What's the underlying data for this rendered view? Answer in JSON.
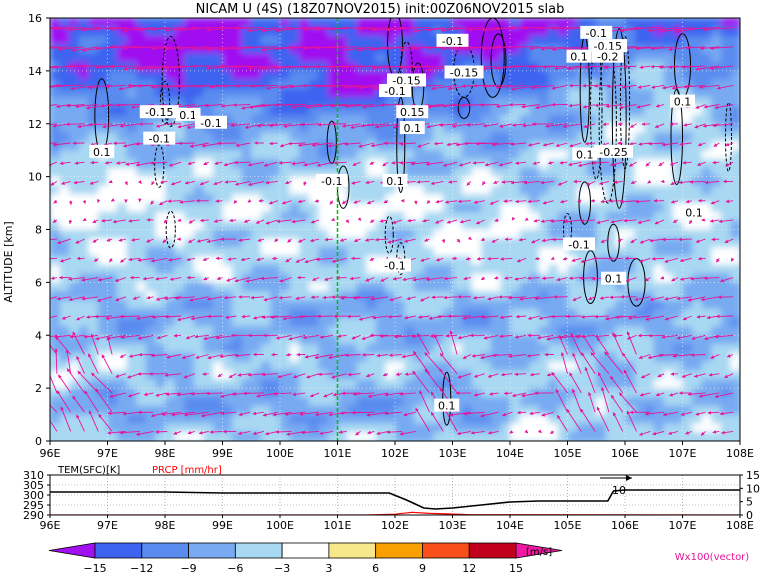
{
  "chart_data": [
    {
      "type": "heatmap",
      "title": "NICAM U (4S) (18Z07NOV2015) init:00Z06NOV2015 slab",
      "xlabel": "",
      "ylabel": "ALTITUDE [km]",
      "x_ticks": [
        "96E",
        "97E",
        "98E",
        "99E",
        "100E",
        "101E",
        "102E",
        "103E",
        "104E",
        "105E",
        "106E",
        "107E",
        "108E"
      ],
      "x_range": [
        96,
        108
      ],
      "y_ticks": [
        "0",
        "2",
        "4",
        "6",
        "8",
        "10",
        "12",
        "14",
        "16"
      ],
      "y_range": [
        0,
        16
      ],
      "reference_line_lon": 101,
      "color_levels": [
        "-15",
        "-12",
        "-9",
        "-6",
        "-3",
        "3",
        "6",
        "9",
        "12",
        "15"
      ],
      "color_palette": [
        "#a010f0",
        "#3c64f0",
        "#5a8cf0",
        "#78aaf2",
        "#a8d8f2",
        "#ffffff",
        "#f8e88c",
        "#f8a000",
        "#f85018",
        "#c0001c",
        "#f018a0"
      ],
      "colorbar_unit": "[m/s]",
      "vector_label": "Wx100(vector)",
      "vector_color": "#e6149a",
      "contour_labels": [
        {
          "text": "-0.1",
          "lon": 103.0,
          "alt": 15.1
        },
        {
          "text": "-0.1",
          "lon": 105.5,
          "alt": 15.4
        },
        {
          "text": "-0.15",
          "lon": 105.7,
          "alt": 14.9
        },
        {
          "text": "-0.2",
          "lon": 105.7,
          "alt": 14.5
        },
        {
          "text": "0.1",
          "lon": 105.2,
          "alt": 14.5
        },
        {
          "text": "-0.15",
          "lon": 102.2,
          "alt": 13.6
        },
        {
          "text": "-0.1",
          "lon": 102.0,
          "alt": 13.2
        },
        {
          "text": "0.15",
          "lon": 102.3,
          "alt": 12.4
        },
        {
          "text": "0.1",
          "lon": 102.3,
          "alt": 11.8
        },
        {
          "text": "-0.15",
          "lon": 103.2,
          "alt": 13.9
        },
        {
          "text": "-0.15",
          "lon": 97.9,
          "alt": 12.4
        },
        {
          "text": "0.1",
          "lon": 98.4,
          "alt": 12.3
        },
        {
          "text": "-0.1",
          "lon": 98.8,
          "alt": 12.0
        },
        {
          "text": "-0.1",
          "lon": 97.9,
          "alt": 11.4
        },
        {
          "text": "0.1",
          "lon": 96.9,
          "alt": 10.9
        },
        {
          "text": "0.1",
          "lon": 107.0,
          "alt": 12.8
        },
        {
          "text": "0.1",
          "lon": 105.3,
          "alt": 10.8
        },
        {
          "text": "-0.25",
          "lon": 105.8,
          "alt": 10.9
        },
        {
          "text": "-0.1",
          "lon": 100.9,
          "alt": 9.8
        },
        {
          "text": "0.1",
          "lon": 102.0,
          "alt": 9.8
        },
        {
          "text": "0.1",
          "lon": 107.2,
          "alt": 8.6
        },
        {
          "text": "-0.1",
          "lon": 105.2,
          "alt": 7.4
        },
        {
          "text": "-0.1",
          "lon": 102.0,
          "alt": 6.6
        },
        {
          "text": "0.1",
          "lon": 105.8,
          "alt": 6.1
        },
        {
          "text": "0.1",
          "lon": 102.9,
          "alt": 1.3
        }
      ]
    },
    {
      "type": "line",
      "xlabel": "",
      "x_ticks": [
        "96E",
        "97E",
        "98E",
        "99E",
        "100E",
        "101E",
        "102E",
        "103E",
        "104E",
        "105E",
        "106E",
        "107E",
        "108E"
      ],
      "x_range": [
        96,
        108
      ],
      "left_label": "TEM(SFC)[K]",
      "right_label": "PRCP [mm/hr]",
      "left_ticks": [
        "290",
        "295",
        "300",
        "305",
        "310"
      ],
      "left_range": [
        290,
        310
      ],
      "right_ticks": [
        "0",
        "5",
        "10",
        "15"
      ],
      "right_range": [
        0,
        15
      ],
      "series": [
        {
          "name": "TEM(SFC)[K]",
          "color": "#000000",
          "x": [
            96,
            97,
            98,
            99,
            100,
            101,
            101.9,
            102.2,
            102.5,
            102.7,
            103.0,
            103.5,
            104.0,
            104.5,
            105.0,
            105.5,
            105.7,
            105.8,
            106.0,
            106.5,
            107,
            108
          ],
          "y": [
            301.5,
            301.5,
            301.5,
            301.0,
            301.0,
            301.0,
            301.0,
            297.5,
            293.5,
            293.0,
            293.5,
            295.0,
            296.5,
            297.0,
            297.0,
            297.0,
            297.0,
            302.0,
            302.5,
            302.5,
            302.5,
            302.5
          ]
        },
        {
          "name": "PRCP [mm/hr]",
          "color": "#ff0000",
          "x": [
            96,
            101.5,
            102.0,
            102.3,
            102.6,
            102.9,
            103.3,
            108
          ],
          "y": [
            0,
            0,
            0.3,
            1.0,
            0.6,
            0.4,
            0.1,
            0
          ]
        }
      ]
    }
  ],
  "colorbar": {
    "labels": [
      "−15",
      "−12",
      "−9",
      "−6",
      "−3",
      "3",
      "6",
      "9",
      "12",
      "15"
    ],
    "unit": "[m/s]"
  },
  "footer": {
    "vector_label": "Wx100(vector)"
  }
}
